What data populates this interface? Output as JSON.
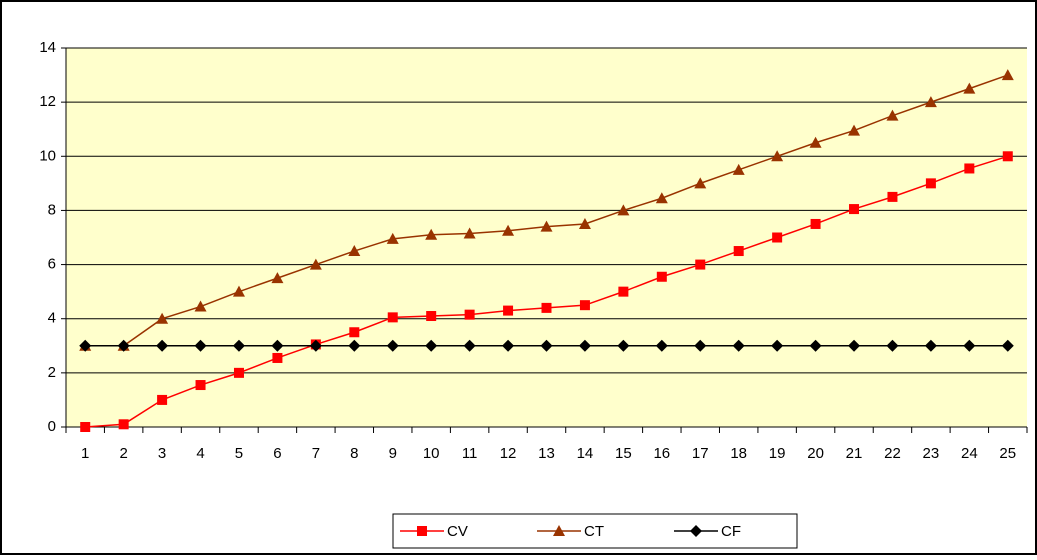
{
  "chart_data": {
    "type": "line",
    "categories": [
      "1",
      "2",
      "3",
      "4",
      "5",
      "6",
      "7",
      "8",
      "9",
      "10",
      "11",
      "12",
      "13",
      "14",
      "15",
      "16",
      "17",
      "18",
      "19",
      "20",
      "21",
      "22",
      "23",
      "24",
      "25"
    ],
    "series": [
      {
        "name": "CV",
        "color": "#ff0000",
        "marker": "square",
        "values": [
          0,
          0.1,
          1,
          1.55,
          2,
          2.55,
          3.05,
          3.5,
          4.05,
          4.1,
          4.15,
          4.3,
          4.4,
          4.5,
          5,
          5.55,
          6,
          6.5,
          7,
          7.5,
          8.05,
          8.5,
          9,
          9.55,
          10
        ]
      },
      {
        "name": "CT",
        "color": "#993300",
        "marker": "triangle",
        "values": [
          3,
          3,
          4,
          4.45,
          5,
          5.5,
          6,
          6.5,
          6.95,
          7.1,
          7.15,
          7.25,
          7.4,
          7.5,
          8,
          8.45,
          9,
          9.5,
          10,
          10.5,
          10.95,
          11.5,
          12,
          12.5,
          13
        ]
      },
      {
        "name": "CF",
        "color": "#000000",
        "marker": "diamond",
        "values": [
          3,
          3,
          3,
          3,
          3,
          3,
          3,
          3,
          3,
          3,
          3,
          3,
          3,
          3,
          3,
          3,
          3,
          3,
          3,
          3,
          3,
          3,
          3,
          3,
          3
        ]
      }
    ],
    "ylim": [
      0,
      14
    ],
    "yticks": [
      0,
      2,
      4,
      6,
      8,
      10,
      12,
      14
    ],
    "grid": true,
    "legend": "bottom",
    "plot_background": "#ffffcc"
  }
}
